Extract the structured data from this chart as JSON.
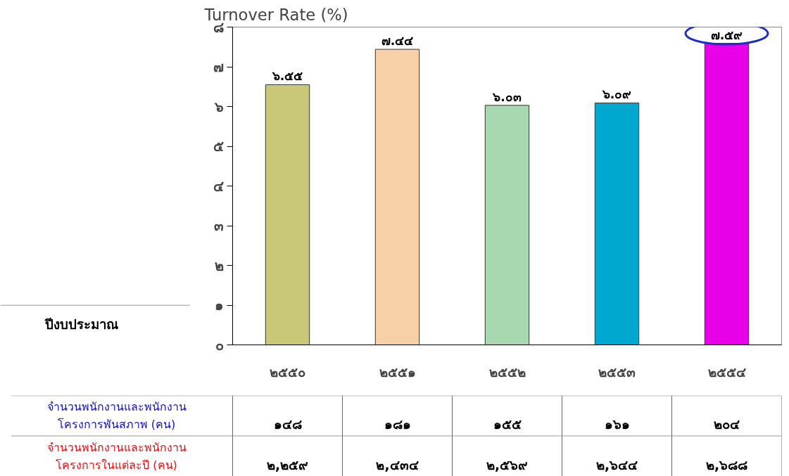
{
  "chart_data": {
    "type": "bar",
    "title": "Turnover Rate (%)",
    "categories": [
      "๒๕๕๐",
      "๒๕๕๑",
      "๒๕๕๒",
      "๒๕๕๓",
      "๒๕๕๔"
    ],
    "values": [
      6.55,
      7.44,
      6.03,
      6.09,
      7.59
    ],
    "value_labels": [
      "๖.๕๕",
      "๗.๔๔",
      "๖.๐๓",
      "๖.๐๙",
      "๗.๕๙"
    ],
    "colors": [
      "#c8c878",
      "#f8d0a8",
      "#a8d8b0",
      "#00a8d0",
      "#e800e8"
    ],
    "ylim": [
      0,
      8
    ],
    "yticks": [
      {
        "value": 0,
        "label": "๐"
      },
      {
        "value": 1,
        "label": "๑"
      },
      {
        "value": 2,
        "label": "๒"
      },
      {
        "value": 3,
        "label": "๓"
      },
      {
        "value": 4,
        "label": "๔"
      },
      {
        "value": 5,
        "label": "๕"
      },
      {
        "value": 6,
        "label": "๖"
      },
      {
        "value": 7,
        "label": "๗"
      },
      {
        "value": 8,
        "label": "๘"
      }
    ],
    "grid": false,
    "annotations": [
      "ปีงบประมาณ",
      "จำนวนพนักงานและพนักงาน\nโครงการพันสภาพ (คน)",
      "๑๔๘",
      "๑๘๑",
      "๑๕๕",
      "๑๖๑",
      "๒๐๔",
      "จำนวนพนักงานและพนักงาน\nโครงการในแต่ละปี (คน)",
      "๒,๒๕๙",
      "๒,๔๓๔",
      "๒,๕๖๙",
      "๒,๖๔๔",
      "๒,๖๘๘"
    ]
  }
}
